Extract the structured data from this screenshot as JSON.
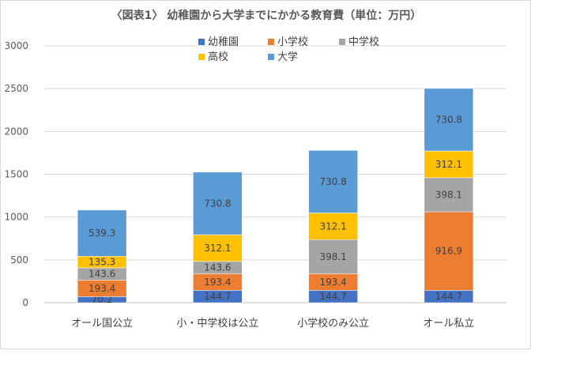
{
  "chart_data": {
    "type": "bar",
    "stacked": true,
    "title": "〈図表1〉 幼稚園から大学までにかかる教育費（単位：万円）",
    "categories": [
      "オール国公立",
      "小・中学校は公立",
      "小学校のみ公立",
      "オール私立"
    ],
    "series": [
      {
        "name": "幼稚園",
        "color": "#4472c4",
        "values": [
          70.2,
          144.7,
          144.7,
          144.7
        ]
      },
      {
        "name": "小学校",
        "color": "#ed7d31",
        "values": [
          193.4,
          193.4,
          193.4,
          916.9
        ]
      },
      {
        "name": "中学校",
        "color": "#a5a5a5",
        "values": [
          143.6,
          143.6,
          398.1,
          398.1
        ]
      },
      {
        "name": "高校",
        "color": "#ffc000",
        "values": [
          135.3,
          312.1,
          312.1,
          312.1
        ]
      },
      {
        "name": "大学",
        "color": "#5b9bd5",
        "values": [
          539.3,
          730.8,
          730.8,
          730.8
        ]
      }
    ],
    "ylim": [
      0,
      3000
    ],
    "yticks": [
      "0",
      "500",
      "1000",
      "1500",
      "2000",
      "2500",
      "3000"
    ],
    "grid": true,
    "legend": "top"
  }
}
